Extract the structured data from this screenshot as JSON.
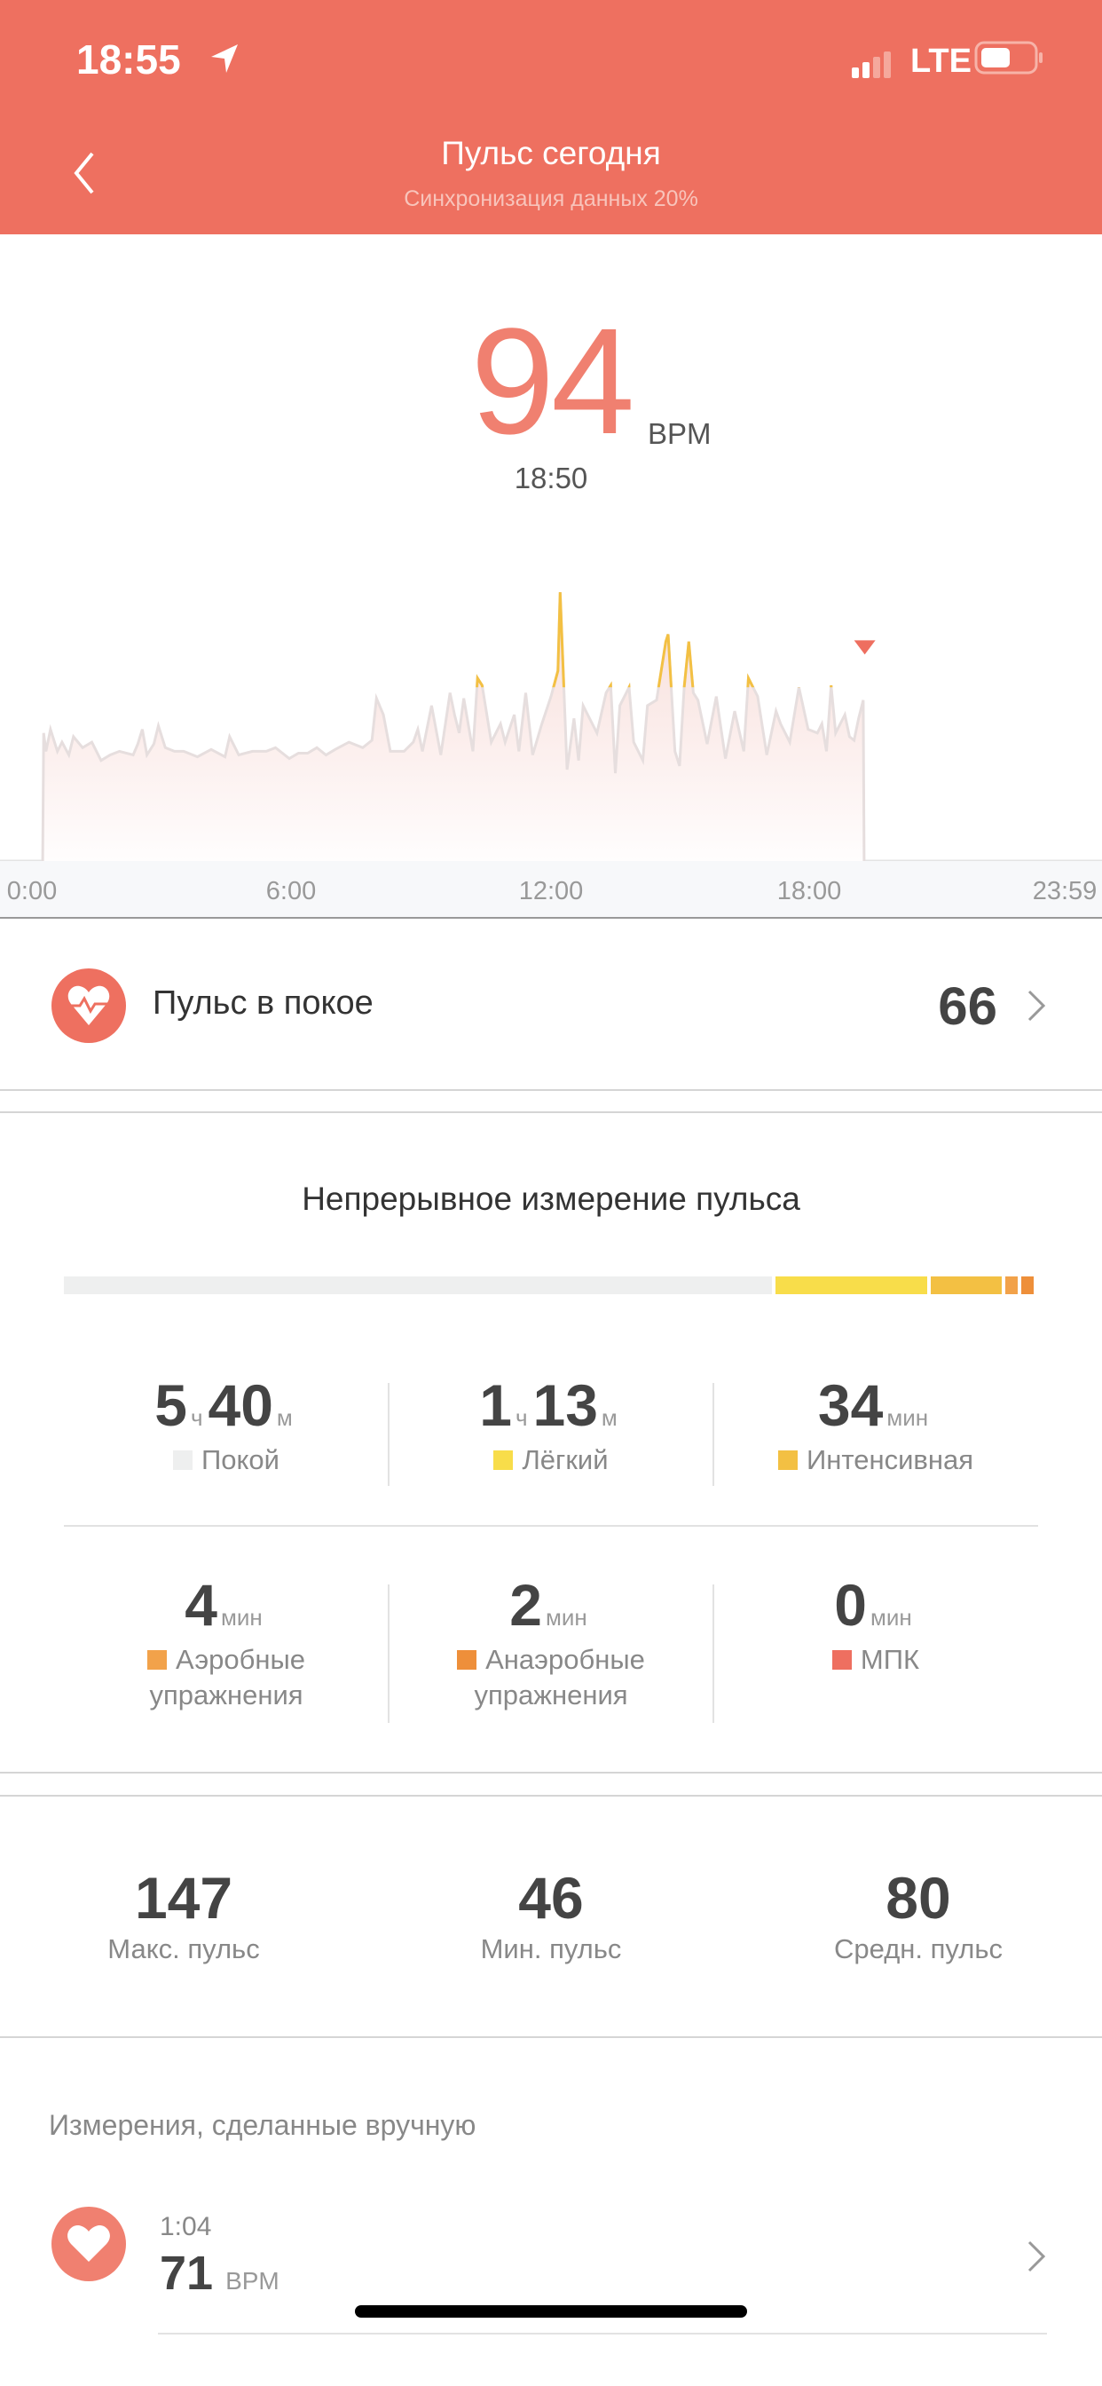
{
  "status_bar": {
    "time": "18:55",
    "network": "LTE",
    "icons": [
      "location-arrow-icon",
      "signal-icon",
      "battery-icon"
    ]
  },
  "header": {
    "title": "Пульс сегодня",
    "subtitle": "Синхронизация данных 20%"
  },
  "current": {
    "value": "94",
    "unit": "BPM",
    "time": "18:50"
  },
  "colors": {
    "header": "#EE7060",
    "accent": "#F08070",
    "rest": "#EEEFEF",
    "light": "#F8DD4A",
    "intensive": "#F3C043",
    "aerobic": "#F2A24A",
    "anaerobic": "#EE8F3A",
    "mpk": "#EE6F60"
  },
  "chart_data": {
    "type": "area",
    "x_unit": "hour of day",
    "xlim": [
      0,
      24
    ],
    "ylim": [
      0,
      150
    ],
    "x_ticks": [
      "0:00",
      "6:00",
      "12:00",
      "18:00",
      "23:59"
    ],
    "grid": false,
    "marker": {
      "time": "18:50",
      "value": 94
    },
    "points": [
      [
        0.93,
        0
      ],
      [
        0.95,
        70
      ],
      [
        1.0,
        60
      ],
      [
        1.1,
        72
      ],
      [
        1.25,
        60
      ],
      [
        1.35,
        65
      ],
      [
        1.5,
        58
      ],
      [
        1.6,
        68
      ],
      [
        1.8,
        62
      ],
      [
        2.0,
        65
      ],
      [
        2.2,
        55
      ],
      [
        2.4,
        58
      ],
      [
        2.6,
        60
      ],
      [
        2.9,
        58
      ],
      [
        3.0,
        64
      ],
      [
        3.1,
        72
      ],
      [
        3.2,
        58
      ],
      [
        3.35,
        64
      ],
      [
        3.45,
        74
      ],
      [
        3.6,
        62
      ],
      [
        3.8,
        60
      ],
      [
        4.0,
        60
      ],
      [
        4.3,
        57
      ],
      [
        4.6,
        61
      ],
      [
        4.9,
        57
      ],
      [
        5.0,
        68
      ],
      [
        5.2,
        58
      ],
      [
        5.5,
        60
      ],
      [
        5.8,
        60
      ],
      [
        6.0,
        62
      ],
      [
        6.3,
        56
      ],
      [
        6.5,
        59
      ],
      [
        6.7,
        59
      ],
      [
        6.9,
        62
      ],
      [
        7.1,
        58
      ],
      [
        7.3,
        61
      ],
      [
        7.6,
        65
      ],
      [
        7.9,
        62
      ],
      [
        8.1,
        66
      ],
      [
        8.2,
        89
      ],
      [
        8.35,
        80
      ],
      [
        8.5,
        60
      ],
      [
        8.8,
        60
      ],
      [
        9.0,
        65
      ],
      [
        9.1,
        72
      ],
      [
        9.2,
        60
      ],
      [
        9.4,
        85
      ],
      [
        9.6,
        58
      ],
      [
        9.8,
        92
      ],
      [
        9.9,
        80
      ],
      [
        10.0,
        70
      ],
      [
        10.1,
        89
      ],
      [
        10.3,
        60
      ],
      [
        10.4,
        100
      ],
      [
        10.5,
        96
      ],
      [
        10.7,
        65
      ],
      [
        10.9,
        75
      ],
      [
        11.0,
        65
      ],
      [
        11.2,
        80
      ],
      [
        11.3,
        60
      ],
      [
        11.45,
        92
      ],
      [
        11.6,
        58
      ],
      [
        11.8,
        75
      ],
      [
        12.0,
        90
      ],
      [
        12.15,
        104
      ],
      [
        12.2,
        147
      ],
      [
        12.35,
        50
      ],
      [
        12.5,
        78
      ],
      [
        12.6,
        55
      ],
      [
        12.7,
        85
      ],
      [
        12.9,
        75
      ],
      [
        13.0,
        70
      ],
      [
        13.2,
        92
      ],
      [
        13.3,
        96
      ],
      [
        13.4,
        48
      ],
      [
        13.5,
        85
      ],
      [
        13.7,
        95
      ],
      [
        13.8,
        65
      ],
      [
        14.0,
        55
      ],
      [
        14.1,
        85
      ],
      [
        14.3,
        88
      ],
      [
        14.5,
        120
      ],
      [
        14.55,
        124
      ],
      [
        14.7,
        60
      ],
      [
        14.8,
        52
      ],
      [
        14.9,
        95
      ],
      [
        15.0,
        120
      ],
      [
        15.1,
        92
      ],
      [
        15.2,
        88
      ],
      [
        15.4,
        64
      ],
      [
        15.6,
        90
      ],
      [
        15.8,
        56
      ],
      [
        16.0,
        82
      ],
      [
        16.2,
        60
      ],
      [
        16.3,
        100
      ],
      [
        16.5,
        90
      ],
      [
        16.7,
        58
      ],
      [
        16.9,
        82
      ],
      [
        17.0,
        75
      ],
      [
        17.2,
        65
      ],
      [
        17.4,
        95
      ],
      [
        17.6,
        72
      ],
      [
        17.8,
        70
      ],
      [
        17.9,
        75
      ],
      [
        18.0,
        60
      ],
      [
        18.1,
        96
      ],
      [
        18.2,
        70
      ],
      [
        18.4,
        80
      ],
      [
        18.5,
        68
      ],
      [
        18.6,
        66
      ],
      [
        18.7,
        78
      ],
      [
        18.8,
        88
      ],
      [
        18.82,
        0
      ]
    ]
  },
  "resting": {
    "label": "Пульс в покое",
    "value": "66"
  },
  "continuous": {
    "title": "Непрерывное измерение пульса",
    "zones": [
      {
        "key": "rest",
        "minutes": 340,
        "h": "5",
        "h_unit": "ч",
        "m": "40",
        "m_unit": "м",
        "label": "Покой"
      },
      {
        "key": "light",
        "minutes": 73,
        "h": "1",
        "h_unit": "ч",
        "m": "13",
        "m_unit": "м",
        "label": "Лёгкий"
      },
      {
        "key": "intensive",
        "minutes": 34,
        "m": "34",
        "m_unit": "мин",
        "label": "Интенсивная"
      },
      {
        "key": "aerobic",
        "minutes": 4,
        "m": "4",
        "m_unit": "мин",
        "label": "Аэробные упражнения"
      },
      {
        "key": "anaerobic",
        "minutes": 2,
        "m": "2",
        "m_unit": "мин",
        "label": "Анаэробные упражнения"
      },
      {
        "key": "mpk",
        "minutes": 0,
        "m": "0",
        "m_unit": "мин",
        "label": "МПК"
      }
    ]
  },
  "summary": [
    {
      "value": "147",
      "label": "Макс. пульс"
    },
    {
      "value": "46",
      "label": "Мин. пульс"
    },
    {
      "value": "80",
      "label": "Средн. пульс"
    }
  ],
  "manual": {
    "title": "Измерения, сделанные вручную",
    "items": [
      {
        "time": "1:04",
        "value": "71",
        "unit": "BPM"
      }
    ]
  }
}
